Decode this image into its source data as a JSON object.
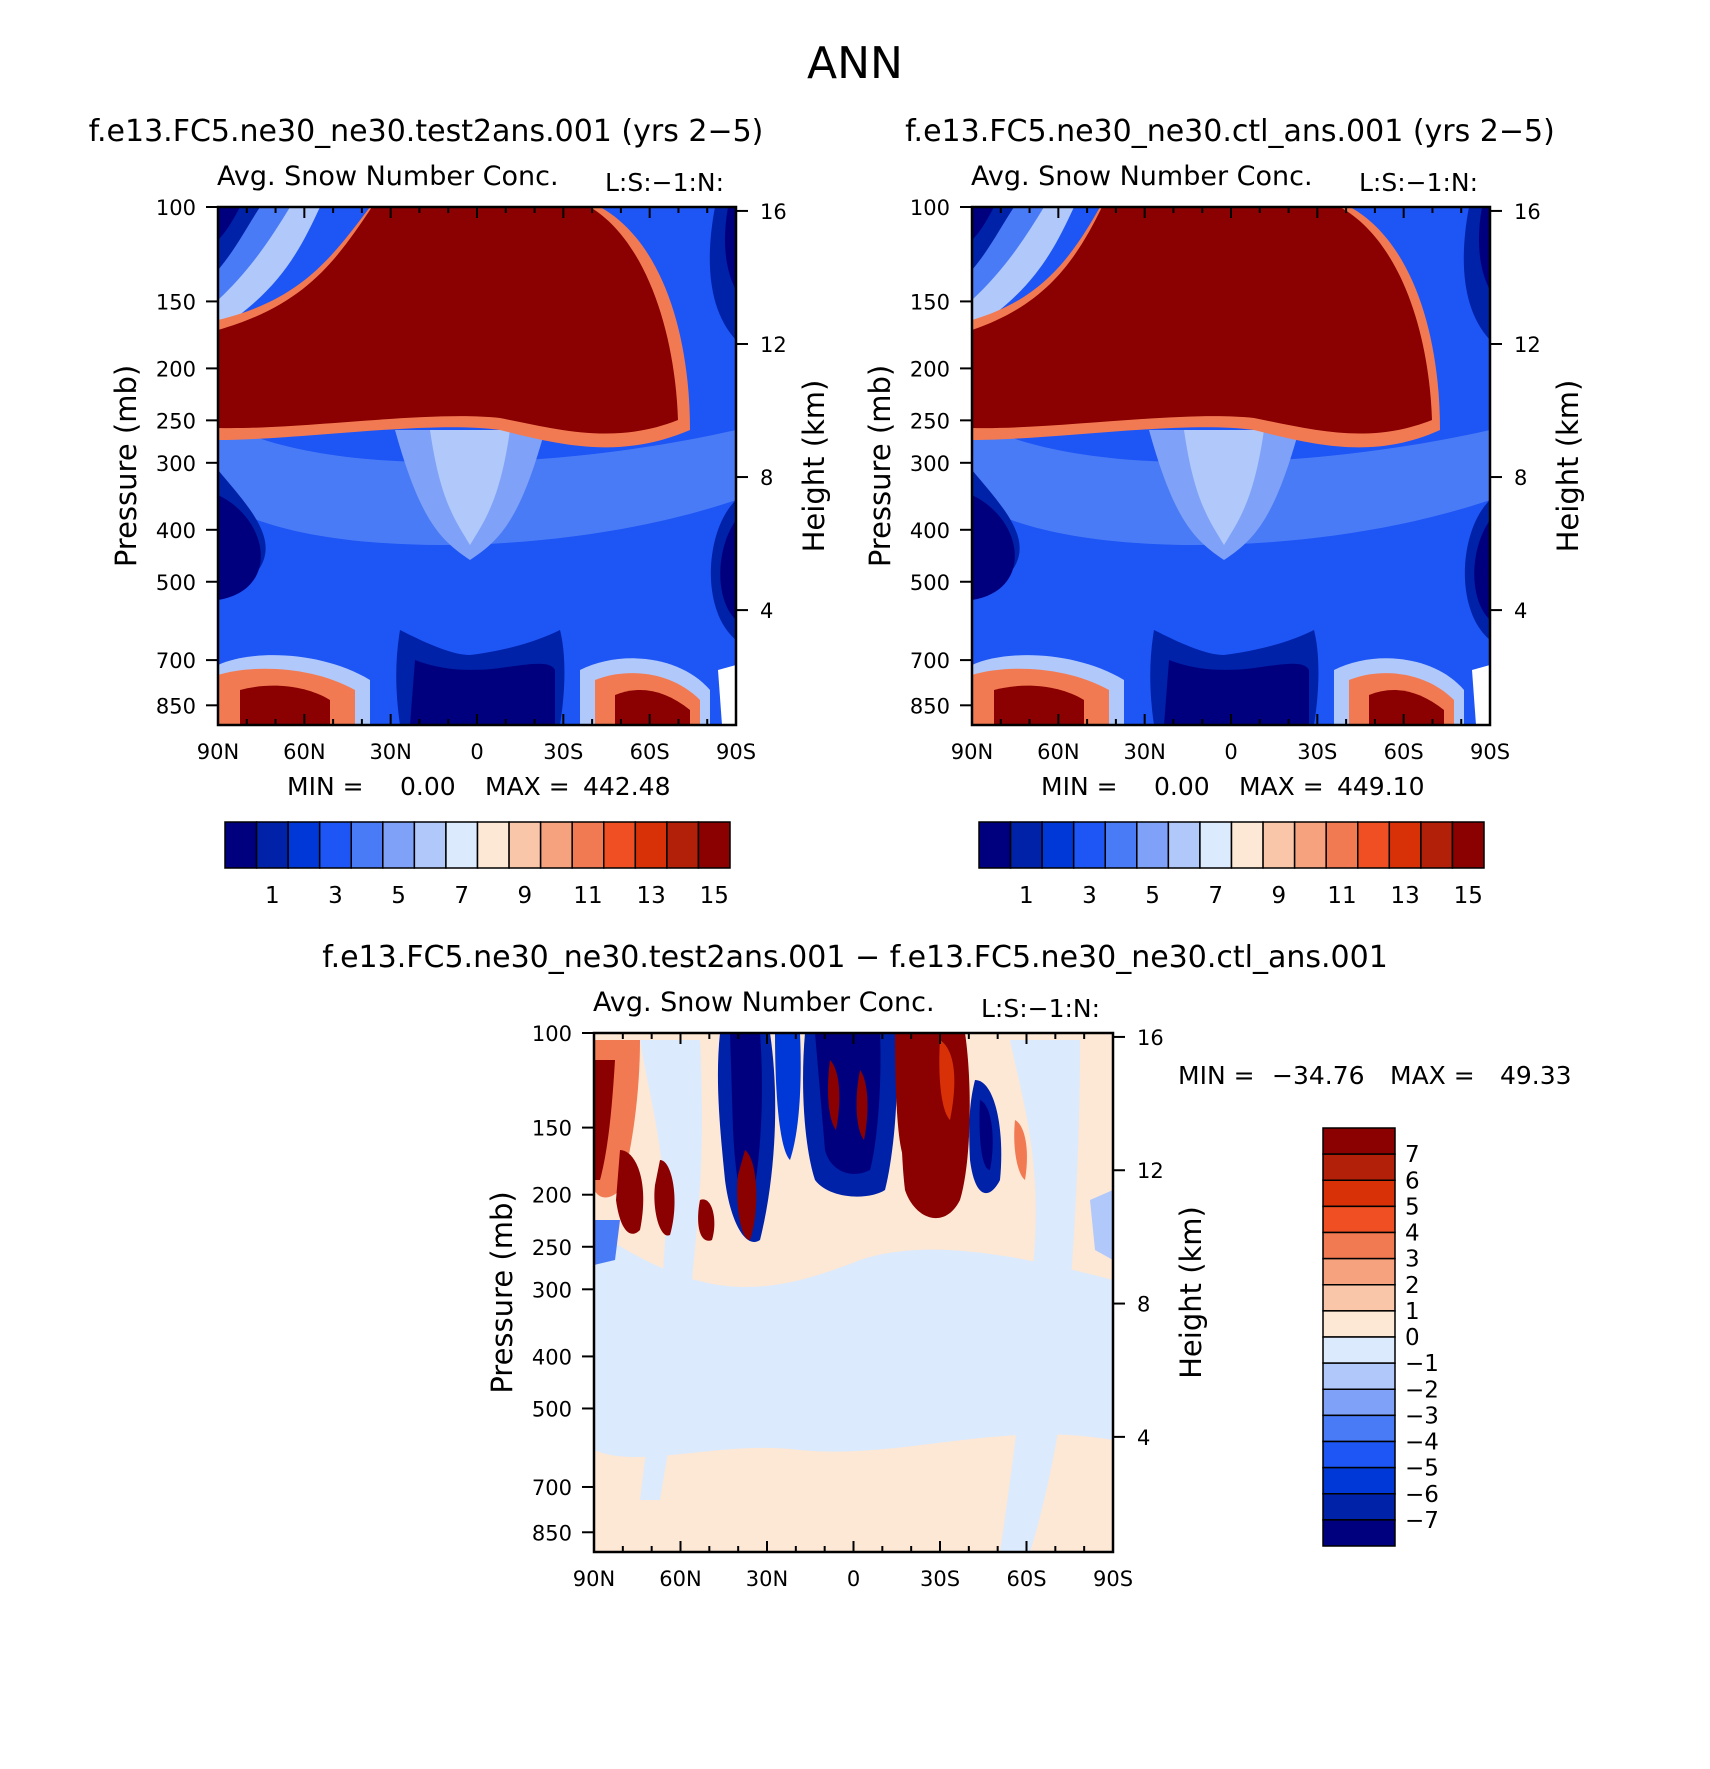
{
  "figure_title": "ANN",
  "colors": {
    "abs_levels": [
      "#00007f",
      "#0022a8",
      "#0038d7",
      "#1e55f5",
      "#4a7bf6",
      "#7fa2f8",
      "#b0c9fa",
      "#dbeafd",
      "#fde8d6",
      "#fac6aa",
      "#f7a27e",
      "#f27a52",
      "#ef4f22",
      "#d93107",
      "#b3200a",
      "#8b0000"
    ],
    "diff_levels": [
      "#8b0000",
      "#b3200a",
      "#d93107",
      "#ef4f22",
      "#f27a52",
      "#f7a27e",
      "#fac6aa",
      "#fde8d6",
      "#dbeafd",
      "#b0c9fa",
      "#7fa2f8",
      "#4a7bf6",
      "#1e55f5",
      "#0038d7",
      "#0022a8",
      "#00007f"
    ]
  },
  "chart_data": [
    {
      "type": "heatmap",
      "panel": "test",
      "case_title": "f.e13.FC5.ne30_ne30.test2ans.001 (yrs 2−5)",
      "variable_title": "Avg. Snow Number Conc.",
      "units_label": "L:S:−1:N:",
      "xlabel": "",
      "ylabel": "Pressure (mb)",
      "y2label": "Height (km)",
      "x_ticks": [
        "90N",
        "60N",
        "30N",
        "0",
        "30S",
        "60S",
        "90S"
      ],
      "y_ticks": [
        "100",
        "150",
        "200",
        "250",
        "300",
        "400",
        "500",
        "700",
        "850"
      ],
      "y_tick_values": [
        100,
        150,
        200,
        250,
        300,
        400,
        500,
        700,
        850
      ],
      "y2_ticks": [
        "16",
        "12",
        "8",
        "4"
      ],
      "y2_tick_values": [
        16,
        12,
        8,
        4
      ],
      "xlim": [
        90,
        -90
      ],
      "ylim": [
        100,
        925
      ],
      "min_label": "MIN =",
      "min_value": "0.00",
      "max_label": "MAX =",
      "max_value": "442.48",
      "colorbar_labels": [
        "1",
        "3",
        "5",
        "7",
        "9",
        "11",
        "13",
        "15"
      ],
      "colorbar_levels": [
        1,
        2,
        3,
        4,
        5,
        6,
        7,
        8,
        9,
        10,
        11,
        12,
        13,
        14,
        15
      ]
    },
    {
      "type": "heatmap",
      "panel": "control",
      "case_title": "f.e13.FC5.ne30_ne30.ctl_ans.001 (yrs 2−5)",
      "variable_title": "Avg. Snow Number Conc.",
      "units_label": "L:S:−1:N:",
      "xlabel": "",
      "ylabel": "Pressure (mb)",
      "y2label": "Height (km)",
      "x_ticks": [
        "90N",
        "60N",
        "30N",
        "0",
        "30S",
        "60S",
        "90S"
      ],
      "y_ticks": [
        "100",
        "150",
        "200",
        "250",
        "300",
        "400",
        "500",
        "700",
        "850"
      ],
      "y_tick_values": [
        100,
        150,
        200,
        250,
        300,
        400,
        500,
        700,
        850
      ],
      "y2_ticks": [
        "16",
        "12",
        "8",
        "4"
      ],
      "y2_tick_values": [
        16,
        12,
        8,
        4
      ],
      "xlim": [
        90,
        -90
      ],
      "ylim": [
        100,
        925
      ],
      "min_label": "MIN =",
      "min_value": "0.00",
      "max_label": "MAX =",
      "max_value": "449.10",
      "colorbar_labels": [
        "1",
        "3",
        "5",
        "7",
        "9",
        "11",
        "13",
        "15"
      ],
      "colorbar_levels": [
        1,
        2,
        3,
        4,
        5,
        6,
        7,
        8,
        9,
        10,
        11,
        12,
        13,
        14,
        15
      ]
    },
    {
      "type": "heatmap",
      "panel": "difference",
      "case_title": "f.e13.FC5.ne30_ne30.test2ans.001 − f.e13.FC5.ne30_ne30.ctl_ans.001",
      "variable_title": "Avg. Snow Number Conc.",
      "units_label": "L:S:−1:N:",
      "xlabel": "",
      "ylabel": "Pressure (mb)",
      "y2label": "Height (km)",
      "x_ticks": [
        "90N",
        "60N",
        "30N",
        "0",
        "30S",
        "60S",
        "90S"
      ],
      "y_ticks": [
        "100",
        "150",
        "200",
        "250",
        "300",
        "400",
        "500",
        "700",
        "850"
      ],
      "y_tick_values": [
        100,
        150,
        200,
        250,
        300,
        400,
        500,
        700,
        850
      ],
      "y2_ticks": [
        "16",
        "12",
        "8",
        "4"
      ],
      "y2_tick_values": [
        16,
        12,
        8,
        4
      ],
      "xlim": [
        90,
        -90
      ],
      "ylim": [
        100,
        925
      ],
      "min_label": "MIN =",
      "min_value": "−34.76",
      "max_label": "MAX =",
      "max_value": "49.33",
      "colorbar_labels": [
        "7",
        "6",
        "5",
        "4",
        "3",
        "2",
        "1",
        "0",
        "−1",
        "−2",
        "−3",
        "−4",
        "−5",
        "−6",
        "−7"
      ],
      "colorbar_levels": [
        7,
        6,
        5,
        4,
        3,
        2,
        1,
        0,
        -1,
        -2,
        -3,
        -4,
        -5,
        -6,
        -7
      ]
    }
  ]
}
